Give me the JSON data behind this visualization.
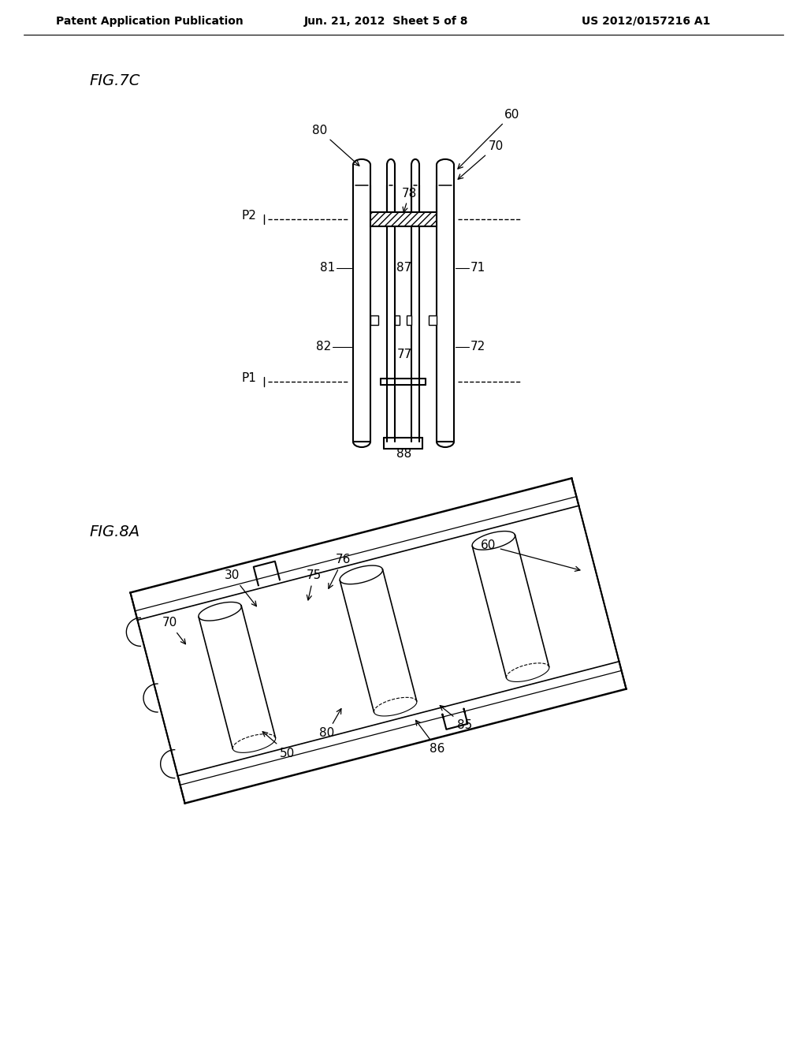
{
  "bg_color": "#ffffff",
  "header_left": "Patent Application Publication",
  "header_center": "Jun. 21, 2012  Sheet 5 of 8",
  "header_right": "US 2012/0157216 A1",
  "fig1_label": "FIG.7C",
  "fig2_label": "FIG.8A"
}
